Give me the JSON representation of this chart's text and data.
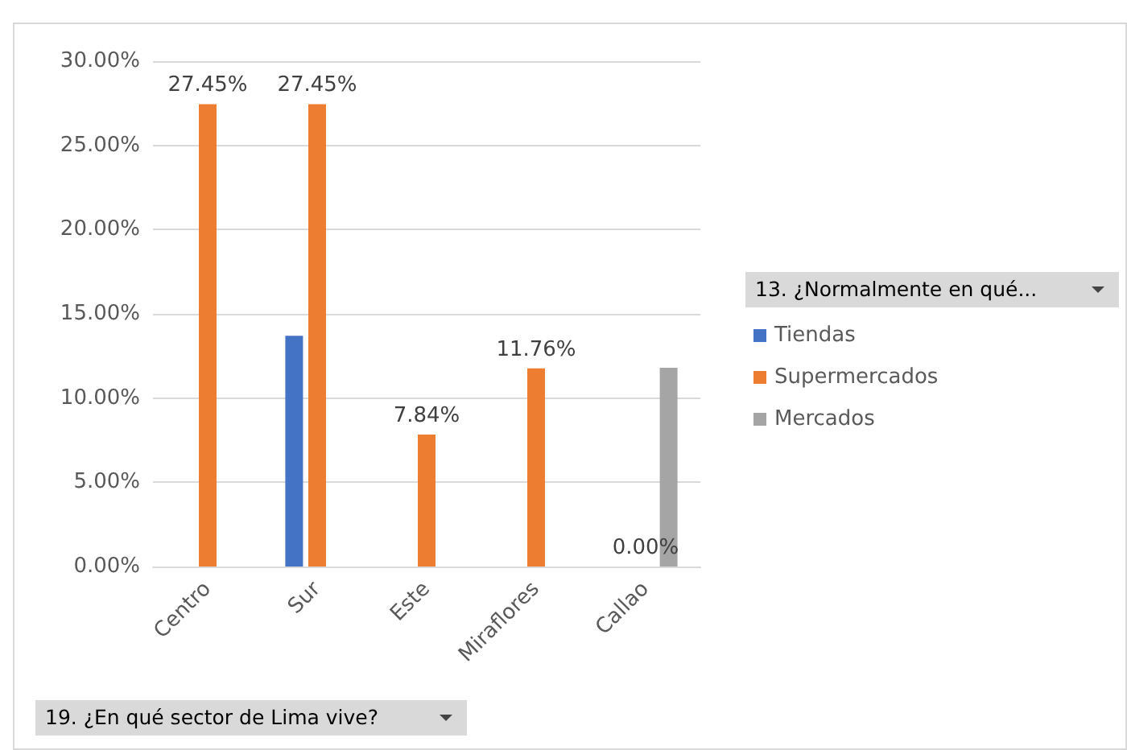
{
  "chart_data": {
    "type": "bar",
    "xlabel": "19. ¿En qué sector de Lima vive?",
    "legend_title": "13. ¿Normalmente en qué...",
    "categories": [
      "Centro",
      "Sur",
      "Este",
      "Miraflores",
      "Callao"
    ],
    "series": [
      {
        "name": "Tiendas",
        "color": "#4472c4",
        "values": [
          0,
          13.7,
          0,
          0,
          0
        ]
      },
      {
        "name": "Supermercados",
        "color": "#ed7d31",
        "values": [
          27.45,
          27.45,
          7.84,
          11.76,
          0
        ],
        "value_labels": [
          "27.45%",
          "27.45%",
          "7.84%",
          "11.76%",
          "0.00%"
        ]
      },
      {
        "name": "Mercados",
        "color": "#a5a5a5",
        "values": [
          0,
          0,
          0,
          0,
          11.8
        ]
      }
    ],
    "ylim": [
      0,
      30
    ],
    "yticks": [
      {
        "value": 0,
        "label": "0.00%"
      },
      {
        "value": 5,
        "label": "5.00%"
      },
      {
        "value": 10,
        "label": "10.00%"
      },
      {
        "value": 15,
        "label": "15.00%"
      },
      {
        "value": 20,
        "label": "20.00%"
      },
      {
        "value": 25,
        "label": "25.00%"
      },
      {
        "value": 30,
        "label": "30.00%"
      }
    ],
    "grid": "y",
    "legend": "right"
  }
}
